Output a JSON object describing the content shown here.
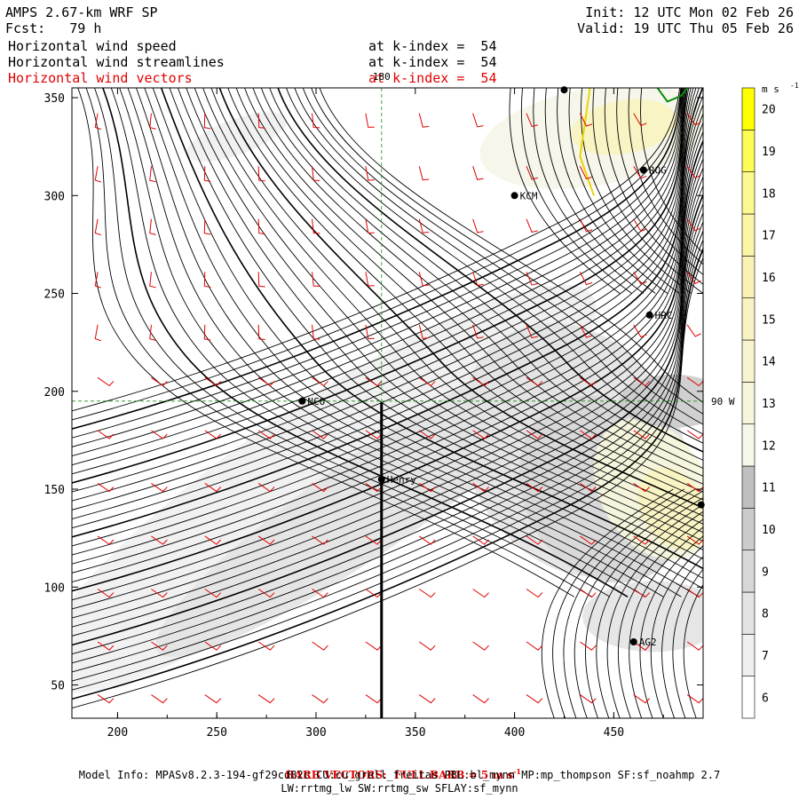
{
  "header": {
    "model": "AMPS 2.67-km WRF SP",
    "forecast": "Fcst:   79 h",
    "init": "Init: 12 UTC Mon 02 Feb 26",
    "valid": "Valid: 19 UTC Thu 05 Feb 26",
    "fields": [
      {
        "label": "Horizontal wind speed",
        "level": "at k-index =  54",
        "color": "#000000"
      },
      {
        "label": "Horizontal wind streamlines",
        "level": "at k-index =  54",
        "color": "#000000"
      },
      {
        "label": "Horizontal wind vectors",
        "level": "at k-index =  54",
        "color": "#e00000"
      }
    ]
  },
  "footer": {
    "barb_note_prefix": "BARB VECTORS:  FULL BARB = 5 m s",
    "barb_note_exp": "-1",
    "model_info": "Model Info: MPASv8.2.3-194-gf29cd82c CU:cu_grell_freitas PBL:bl_mynn MP:mp_thompson SF:sf_noahmp 2.7",
    "model_info2": "LW:rrtmg_lw SW:rrtmg_sw SFLAY:sf_mynn"
  },
  "chart_data": {
    "type": "heatmap",
    "xlim": [
      177,
      495
    ],
    "ylim": [
      33,
      355
    ],
    "x_ticks": [
      200,
      250,
      300,
      350,
      400,
      450
    ],
    "y_ticks": [
      50,
      100,
      150,
      200,
      250,
      300,
      350
    ],
    "colorbar": {
      "unit_label": "m s",
      "unit_exp": "-1",
      "levels": [
        6,
        7,
        8,
        9,
        10,
        11,
        12,
        13,
        14,
        15,
        16,
        17,
        18,
        19,
        20
      ],
      "colors": [
        "#ffffff",
        "#efefef",
        "#e3e3e3",
        "#d7d7d7",
        "#cbcbcb",
        "#bfbfbf",
        "#f6f6ea",
        "#f7f5dc",
        "#f8f4cf",
        "#f9f3c1",
        "#faf2b4",
        "#fbf6a6",
        "#fcf98f",
        "#fdfb55",
        "#ffff00"
      ]
    },
    "reference_lines": [
      {
        "orientation": "vertical",
        "x": 333,
        "label": "180"
      },
      {
        "orientation": "horizontal",
        "y": 195,
        "label": "90 W"
      }
    ],
    "cross_section": {
      "x": 333,
      "y_start": 33,
      "y_end": 194
    },
    "stations": [
      {
        "name": "NCO",
        "x": 293,
        "y": 195
      },
      {
        "name": "Henry",
        "x": 333,
        "y": 155
      },
      {
        "name": "KCM",
        "x": 400,
        "y": 300
      },
      {
        "name": "ROG",
        "x": 465,
        "y": 313
      },
      {
        "name": "HRC",
        "x": 468,
        "y": 239
      },
      {
        "name": "AG2",
        "x": 460,
        "y": 72
      },
      {
        "name": "",
        "x": 425,
        "y": 354
      },
      {
        "name": "",
        "x": 494,
        "y": 142
      }
    ]
  }
}
